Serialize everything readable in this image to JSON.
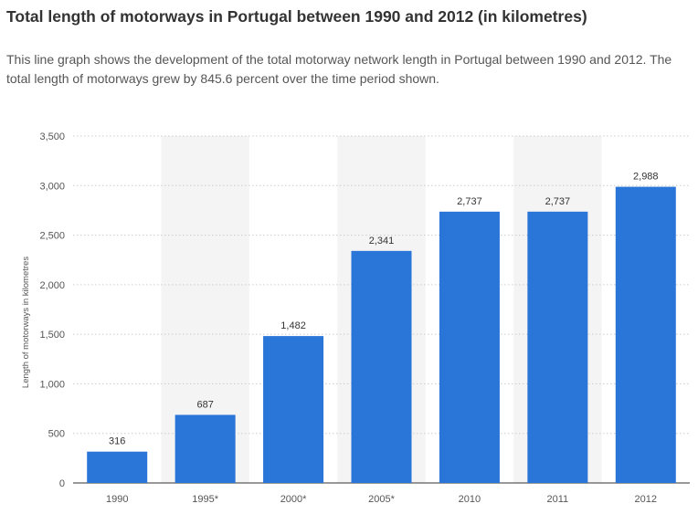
{
  "title": "Total length of motorways in Portugal between 1990 and 2012 (in kilometres)",
  "subtitle": "This line graph shows the development of the total motorway network length in Portugal between 1990 and 2012. The total length of motorways grew by 845.6 percent over the time period shown.",
  "colors": {
    "bar": "#2a75d8",
    "band": "#f4f4f4",
    "grid": "#cccccc",
    "axis": "#333333"
  },
  "chart_data": {
    "type": "bar",
    "categories": [
      "1990",
      "1995*",
      "2000*",
      "2005*",
      "2010",
      "2011",
      "2012"
    ],
    "values": [
      316,
      687,
      1482,
      2341,
      2737,
      2737,
      2988
    ],
    "value_labels": [
      "316",
      "687",
      "1,482",
      "2,341",
      "2,737",
      "2,737",
      "2,988"
    ],
    "ylabel": "Length of motorways in kilometres",
    "ylim": [
      0,
      3500
    ],
    "yticks": [
      0,
      500,
      1000,
      1500,
      2000,
      2500,
      3000,
      3500
    ],
    "ytick_labels": [
      "0",
      "500",
      "1,000",
      "1,500",
      "2,000",
      "2,500",
      "3,000",
      "3,500"
    ],
    "grid": true,
    "legend": "none"
  }
}
